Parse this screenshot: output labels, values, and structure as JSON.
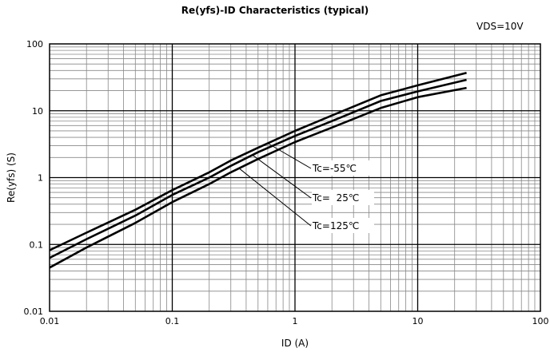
{
  "chart_data": {
    "type": "line",
    "title": "Re(yfs)-ID Characteristics (typical)",
    "condition": "VDS=10V",
    "xlabel": "ID (A)",
    "ylabel": "Re(yfs) (S)",
    "xscale": "log",
    "yscale": "log",
    "xlim": [
      0.01,
      100
    ],
    "ylim": [
      0.01,
      100
    ],
    "x_ticks": [
      "0.01",
      "0.1",
      "1",
      "10",
      "100"
    ],
    "y_ticks": [
      "0.01",
      "0.1",
      "1",
      "10",
      "100"
    ],
    "grid": true,
    "series": [
      {
        "name": "Tc=-55℃",
        "points": [
          [
            0.01,
            0.082
          ],
          [
            0.02,
            0.15
          ],
          [
            0.05,
            0.33
          ],
          [
            0.1,
            0.65
          ],
          [
            0.2,
            1.2
          ],
          [
            0.3,
            1.8
          ],
          [
            0.5,
            2.8
          ],
          [
            1,
            5.0
          ],
          [
            2,
            8.5
          ],
          [
            5,
            17
          ],
          [
            10,
            24
          ],
          [
            25,
            37
          ]
        ]
      },
      {
        "name": "Tc=  25℃",
        "points": [
          [
            0.01,
            0.063
          ],
          [
            0.02,
            0.12
          ],
          [
            0.05,
            0.27
          ],
          [
            0.1,
            0.55
          ],
          [
            0.2,
            1.0
          ],
          [
            0.3,
            1.5
          ],
          [
            0.5,
            2.4
          ],
          [
            1,
            4.2
          ],
          [
            2,
            7.0
          ],
          [
            5,
            14
          ],
          [
            10,
            19.5
          ],
          [
            25,
            29
          ]
        ]
      },
      {
        "name": "Tc=125℃",
        "points": [
          [
            0.01,
            0.045
          ],
          [
            0.02,
            0.09
          ],
          [
            0.05,
            0.21
          ],
          [
            0.1,
            0.43
          ],
          [
            0.2,
            0.8
          ],
          [
            0.3,
            1.2
          ],
          [
            0.5,
            1.9
          ],
          [
            1,
            3.4
          ],
          [
            2,
            5.6
          ],
          [
            5,
            11
          ],
          [
            10,
            16
          ],
          [
            25,
            22
          ]
        ]
      }
    ],
    "annotations": [
      {
        "text": "Tc=-55℃",
        "series": 0,
        "x": 0.6
      },
      {
        "text": "Tc=  25℃",
        "series": 1,
        "x": 0.45
      },
      {
        "text": "Tc=125℃",
        "series": 2,
        "x": 0.35
      }
    ]
  }
}
